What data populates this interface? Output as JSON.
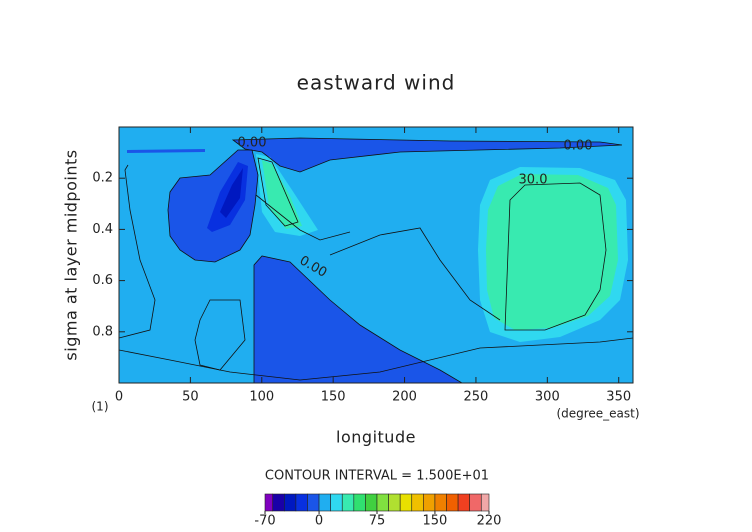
{
  "chart_data": {
    "type": "contour",
    "title": "eastward wind",
    "xlabel": "longitude",
    "ylabel": "sigma at layer midpoints",
    "x_unit": "(degree_east)",
    "y_unit": "(1)",
    "xlim": [
      0,
      360
    ],
    "ylim": [
      1,
      0
    ],
    "xticks": [
      0,
      50,
      100,
      150,
      200,
      250,
      300,
      350
    ],
    "yticks": [
      0.2,
      0.4,
      0.6,
      0.8
    ],
    "contour_interval_label": "CONTOUR INTERVAL = 1.500E+01",
    "contour_labels": [
      {
        "value": 0,
        "label": "0.00"
      },
      {
        "value": 30,
        "label": "30.0"
      },
      {
        "value": 0,
        "label": "0.00"
      },
      {
        "value": 0,
        "label": "0.00"
      }
    ],
    "colorbar": {
      "levels": [
        -70,
        -60,
        -45,
        -30,
        -15,
        0,
        15,
        30,
        45,
        60,
        75,
        90,
        105,
        120,
        135,
        150,
        165,
        180,
        195,
        210,
        220
      ],
      "colors": [
        "#8000c0",
        "#1a00a8",
        "#0018c0",
        "#0830e0",
        "#1a55e8",
        "#20aef0",
        "#30d8f0",
        "#38eab0",
        "#30e070",
        "#40d040",
        "#80e040",
        "#b0e030",
        "#e8e000",
        "#f0c000",
        "#f0a000",
        "#f08000",
        "#f06000",
        "#f04020",
        "#f06868",
        "#f0a8a8"
      ],
      "ticks": [
        -70,
        0,
        75,
        150,
        220
      ]
    }
  }
}
